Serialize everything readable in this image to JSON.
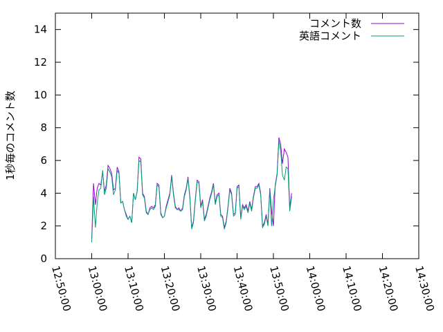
{
  "chart_data": {
    "type": "line",
    "ylabel": "1秒毎のコメント数",
    "xlabel": "",
    "ylim": [
      0,
      15
    ],
    "yticks": [
      0,
      2,
      4,
      6,
      8,
      10,
      12,
      14
    ],
    "xlim": [
      "12:50:00",
      "14:30:00"
    ],
    "xticks": [
      "12:50:00",
      "13:00:00",
      "13:10:00",
      "13:20:00",
      "13:30:00",
      "13:40:00",
      "13:50:00",
      "14:00:00",
      "14:10:00",
      "14:20:00",
      "14:30:00"
    ],
    "legend_position": "top-right",
    "series": [
      {
        "name": "コメント数",
        "color": "#9400d3",
        "points": [
          [
            "13:00:00",
            1.2
          ],
          [
            "13:00:30",
            4.6
          ],
          [
            "13:01:00",
            3.3
          ],
          [
            "13:01:30",
            4.3
          ],
          [
            "13:02:00",
            4.6
          ],
          [
            "13:02:30",
            4.5
          ],
          [
            "13:03:00",
            5.3
          ],
          [
            "13:03:30",
            4.1
          ],
          [
            "13:04:00",
            4.5
          ],
          [
            "13:04:30",
            5.7
          ],
          [
            "13:05:00",
            5.5
          ],
          [
            "13:05:30",
            5.2
          ],
          [
            "13:06:00",
            4.2
          ],
          [
            "13:06:30",
            4.3
          ],
          [
            "13:07:00",
            5.6
          ],
          [
            "13:07:30",
            5.3
          ],
          [
            "13:08:00",
            3.4
          ],
          [
            "13:08:30",
            3.5
          ],
          [
            "13:09:00",
            3.0
          ],
          [
            "13:09:30",
            2.7
          ],
          [
            "13:10:00",
            2.4
          ],
          [
            "13:10:30",
            2.6
          ],
          [
            "13:11:00",
            2.2
          ],
          [
            "13:11:30",
            4.0
          ],
          [
            "13:12:00",
            3.6
          ],
          [
            "13:12:30",
            4.1
          ],
          [
            "13:13:00",
            6.2
          ],
          [
            "13:13:30",
            6.1
          ],
          [
            "13:14:00",
            4.0
          ],
          [
            "13:14:30",
            3.8
          ],
          [
            "13:15:00",
            2.9
          ],
          [
            "13:15:30",
            2.7
          ],
          [
            "13:16:00",
            3.1
          ],
          [
            "13:16:30",
            3.2
          ],
          [
            "13:17:00",
            3.1
          ],
          [
            "13:17:30",
            3.3
          ],
          [
            "13:18:00",
            4.6
          ],
          [
            "13:18:30",
            4.5
          ],
          [
            "13:19:00",
            2.8
          ],
          [
            "13:19:30",
            2.5
          ],
          [
            "13:20:00",
            2.6
          ],
          [
            "13:20:30",
            3.2
          ],
          [
            "13:21:00",
            3.6
          ],
          [
            "13:21:30",
            4.0
          ],
          [
            "13:22:00",
            5.1
          ],
          [
            "13:22:30",
            4.0
          ],
          [
            "13:23:00",
            3.2
          ],
          [
            "13:23:30",
            3.0
          ],
          [
            "13:24:00",
            3.1
          ],
          [
            "13:24:30",
            2.9
          ],
          [
            "13:25:00",
            3.1
          ],
          [
            "13:25:30",
            3.9
          ],
          [
            "13:26:00",
            4.3
          ],
          [
            "13:26:30",
            5.0
          ],
          [
            "13:27:00",
            3.8
          ],
          [
            "13:27:30",
            1.9
          ],
          [
            "13:28:00",
            2.3
          ],
          [
            "13:28:30",
            3.6
          ],
          [
            "13:29:00",
            4.8
          ],
          [
            "13:29:30",
            4.7
          ],
          [
            "13:30:00",
            3.2
          ],
          [
            "13:30:30",
            3.6
          ],
          [
            "13:31:00",
            2.4
          ],
          [
            "13:31:30",
            2.7
          ],
          [
            "13:32:00",
            3.2
          ],
          [
            "13:32:30",
            3.7
          ],
          [
            "13:33:00",
            4.1
          ],
          [
            "13:33:30",
            4.6
          ],
          [
            "13:34:00",
            3.4
          ],
          [
            "13:34:30",
            3.9
          ],
          [
            "13:35:00",
            4.0
          ],
          [
            "13:35:30",
            2.7
          ],
          [
            "13:36:00",
            2.6
          ],
          [
            "13:36:30",
            1.9
          ],
          [
            "13:37:00",
            2.3
          ],
          [
            "13:37:30",
            3.2
          ],
          [
            "13:38:00",
            4.3
          ],
          [
            "13:38:30",
            4.0
          ],
          [
            "13:39:00",
            2.7
          ],
          [
            "13:39:30",
            2.8
          ],
          [
            "13:40:00",
            4.4
          ],
          [
            "13:40:30",
            4.5
          ],
          [
            "13:41:00",
            2.5
          ],
          [
            "13:41:30",
            3.3
          ],
          [
            "13:42:00",
            3.1
          ],
          [
            "13:42:30",
            3.3
          ],
          [
            "13:43:00",
            2.9
          ],
          [
            "13:43:30",
            3.5
          ],
          [
            "13:44:00",
            3.0
          ],
          [
            "13:44:30",
            3.8
          ],
          [
            "13:45:00",
            4.4
          ],
          [
            "13:45:30",
            4.4
          ],
          [
            "13:46:00",
            4.6
          ],
          [
            "13:46:30",
            4.0
          ],
          [
            "13:47:00",
            2.0
          ],
          [
            "13:47:30",
            2.2
          ],
          [
            "13:48:00",
            2.7
          ],
          [
            "13:48:30",
            2.1
          ],
          [
            "13:49:00",
            4.3
          ],
          [
            "13:49:30",
            2.9
          ],
          [
            "13:50:00",
            2.0
          ],
          [
            "13:50:30",
            4.5
          ],
          [
            "13:51:00",
            5.2
          ],
          [
            "13:51:30",
            7.4
          ],
          [
            "13:52:00",
            7.0
          ],
          [
            "13:52:30",
            5.8
          ],
          [
            "13:53:00",
            6.7
          ],
          [
            "13:53:30",
            6.5
          ],
          [
            "13:54:00",
            6.2
          ],
          [
            "13:54:30",
            3.1
          ],
          [
            "13:55:00",
            4.0
          ]
        ]
      },
      {
        "name": "英語コメント",
        "color": "#009e73",
        "points": [
          [
            "13:00:00",
            1.0
          ],
          [
            "13:00:30",
            3.8
          ],
          [
            "13:01:00",
            1.9
          ],
          [
            "13:01:30",
            3.4
          ],
          [
            "13:02:00",
            4.2
          ],
          [
            "13:02:30",
            4.3
          ],
          [
            "13:03:00",
            5.4
          ],
          [
            "13:03:30",
            3.9
          ],
          [
            "13:04:00",
            4.3
          ],
          [
            "13:04:30",
            5.5
          ],
          [
            "13:05:00",
            5.3
          ],
          [
            "13:05:30",
            5.0
          ],
          [
            "13:06:00",
            3.9
          ],
          [
            "13:06:30",
            4.2
          ],
          [
            "13:07:00",
            5.4
          ],
          [
            "13:07:30",
            5.2
          ],
          [
            "13:08:00",
            3.4
          ],
          [
            "13:08:30",
            3.5
          ],
          [
            "13:09:00",
            3.0
          ],
          [
            "13:09:30",
            2.6
          ],
          [
            "13:10:00",
            2.4
          ],
          [
            "13:10:30",
            2.6
          ],
          [
            "13:11:00",
            2.2
          ],
          [
            "13:11:30",
            4.0
          ],
          [
            "13:12:00",
            3.6
          ],
          [
            "13:12:30",
            4.1
          ],
          [
            "13:13:00",
            6.0
          ],
          [
            "13:13:30",
            5.9
          ],
          [
            "13:14:00",
            3.9
          ],
          [
            "13:14:30",
            3.7
          ],
          [
            "13:15:00",
            2.8
          ],
          [
            "13:15:30",
            2.7
          ],
          [
            "13:16:00",
            3.0
          ],
          [
            "13:16:30",
            3.1
          ],
          [
            "13:17:00",
            3.0
          ],
          [
            "13:17:30",
            3.2
          ],
          [
            "13:18:00",
            4.5
          ],
          [
            "13:18:30",
            4.4
          ],
          [
            "13:19:00",
            2.7
          ],
          [
            "13:19:30",
            2.5
          ],
          [
            "13:20:00",
            2.6
          ],
          [
            "13:20:30",
            3.1
          ],
          [
            "13:21:00",
            3.5
          ],
          [
            "13:21:30",
            3.9
          ],
          [
            "13:22:00",
            5.0
          ],
          [
            "13:22:30",
            3.9
          ],
          [
            "13:23:00",
            3.1
          ],
          [
            "13:23:30",
            3.0
          ],
          [
            "13:24:00",
            3.0
          ],
          [
            "13:24:30",
            2.9
          ],
          [
            "13:25:00",
            3.0
          ],
          [
            "13:25:30",
            3.8
          ],
          [
            "13:26:00",
            4.2
          ],
          [
            "13:26:30",
            4.9
          ],
          [
            "13:27:00",
            3.7
          ],
          [
            "13:27:30",
            1.8
          ],
          [
            "13:28:00",
            2.2
          ],
          [
            "13:28:30",
            3.5
          ],
          [
            "13:29:00",
            4.7
          ],
          [
            "13:29:30",
            4.6
          ],
          [
            "13:30:00",
            3.1
          ],
          [
            "13:30:30",
            3.5
          ],
          [
            "13:31:00",
            2.3
          ],
          [
            "13:31:30",
            2.6
          ],
          [
            "13:32:00",
            3.1
          ],
          [
            "13:32:30",
            3.6
          ],
          [
            "13:33:00",
            4.0
          ],
          [
            "13:33:30",
            4.5
          ],
          [
            "13:34:00",
            3.3
          ],
          [
            "13:34:30",
            3.8
          ],
          [
            "13:35:00",
            3.9
          ],
          [
            "13:35:30",
            2.6
          ],
          [
            "13:36:00",
            2.5
          ],
          [
            "13:36:30",
            1.8
          ],
          [
            "13:37:00",
            2.2
          ],
          [
            "13:37:30",
            3.1
          ],
          [
            "13:38:00",
            4.2
          ],
          [
            "13:38:30",
            3.9
          ],
          [
            "13:39:00",
            2.6
          ],
          [
            "13:39:30",
            2.7
          ],
          [
            "13:40:00",
            4.3
          ],
          [
            "13:40:30",
            4.4
          ],
          [
            "13:41:00",
            2.4
          ],
          [
            "13:41:30",
            3.2
          ],
          [
            "13:42:00",
            3.0
          ],
          [
            "13:42:30",
            3.2
          ],
          [
            "13:43:00",
            2.8
          ],
          [
            "13:43:30",
            3.4
          ],
          [
            "13:44:00",
            2.9
          ],
          [
            "13:44:30",
            3.7
          ],
          [
            "13:45:00",
            4.3
          ],
          [
            "13:45:30",
            4.3
          ],
          [
            "13:46:00",
            4.5
          ],
          [
            "13:46:30",
            3.9
          ],
          [
            "13:47:00",
            1.9
          ],
          [
            "13:47:30",
            2.1
          ],
          [
            "13:48:00",
            2.6
          ],
          [
            "13:48:30",
            2.0
          ],
          [
            "13:49:00",
            4.2
          ],
          [
            "13:49:30",
            2.0
          ],
          [
            "13:50:00",
            3.6
          ],
          [
            "13:50:30",
            4.4
          ],
          [
            "13:51:00",
            5.1
          ],
          [
            "13:51:30",
            7.2
          ],
          [
            "13:52:00",
            6.6
          ],
          [
            "13:52:30",
            5.1
          ],
          [
            "13:53:00",
            4.8
          ],
          [
            "13:53:30",
            5.6
          ],
          [
            "13:54:00",
            5.5
          ],
          [
            "13:54:30",
            2.9
          ],
          [
            "13:55:00",
            3.8
          ]
        ]
      }
    ]
  }
}
